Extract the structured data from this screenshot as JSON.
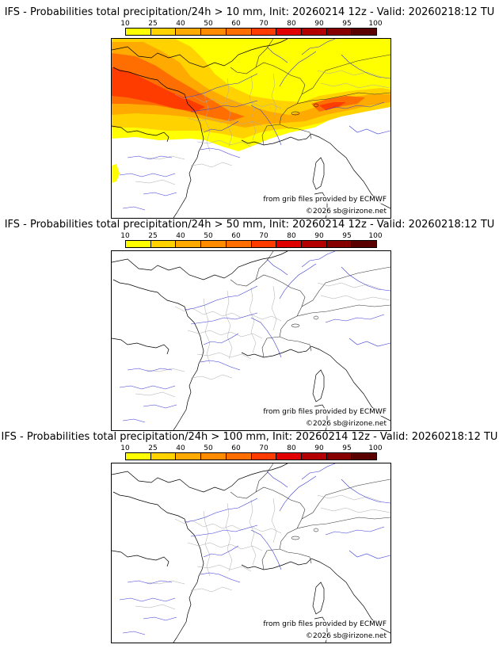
{
  "legend": {
    "labels": [
      "10",
      "25",
      "40",
      "50",
      "60",
      "70",
      "80",
      "90",
      "95",
      "100"
    ],
    "colors": [
      "#ffff00",
      "#ffd200",
      "#ffaa00",
      "#ff8c00",
      "#ff6e00",
      "#ff3c00",
      "#e10000",
      "#b40000",
      "#870000",
      "#5a0000"
    ]
  },
  "credits": {
    "source": "from grib files provided by ECMWF",
    "copyright": "©2026 sb@irizone.net"
  },
  "panels": [
    {
      "title": "IFS - Probabilities total precipitation/24h > 10 mm, Init: 20260214 12z - Valid: 20260218:12 TU",
      "threshold_mm": 10,
      "has_field": true
    },
    {
      "title": "IFS - Probabilities total precipitation/24h > 50 mm, Init: 20260214 12z - Valid: 20260218:12 TU",
      "threshold_mm": 50,
      "has_field": false
    },
    {
      "title": "IFS - Probabilities total precipitation/24h > 100 mm, Init: 20260214 12z - Valid: 20260218:12 TU",
      "threshold_mm": 100,
      "has_field": false
    }
  ]
}
